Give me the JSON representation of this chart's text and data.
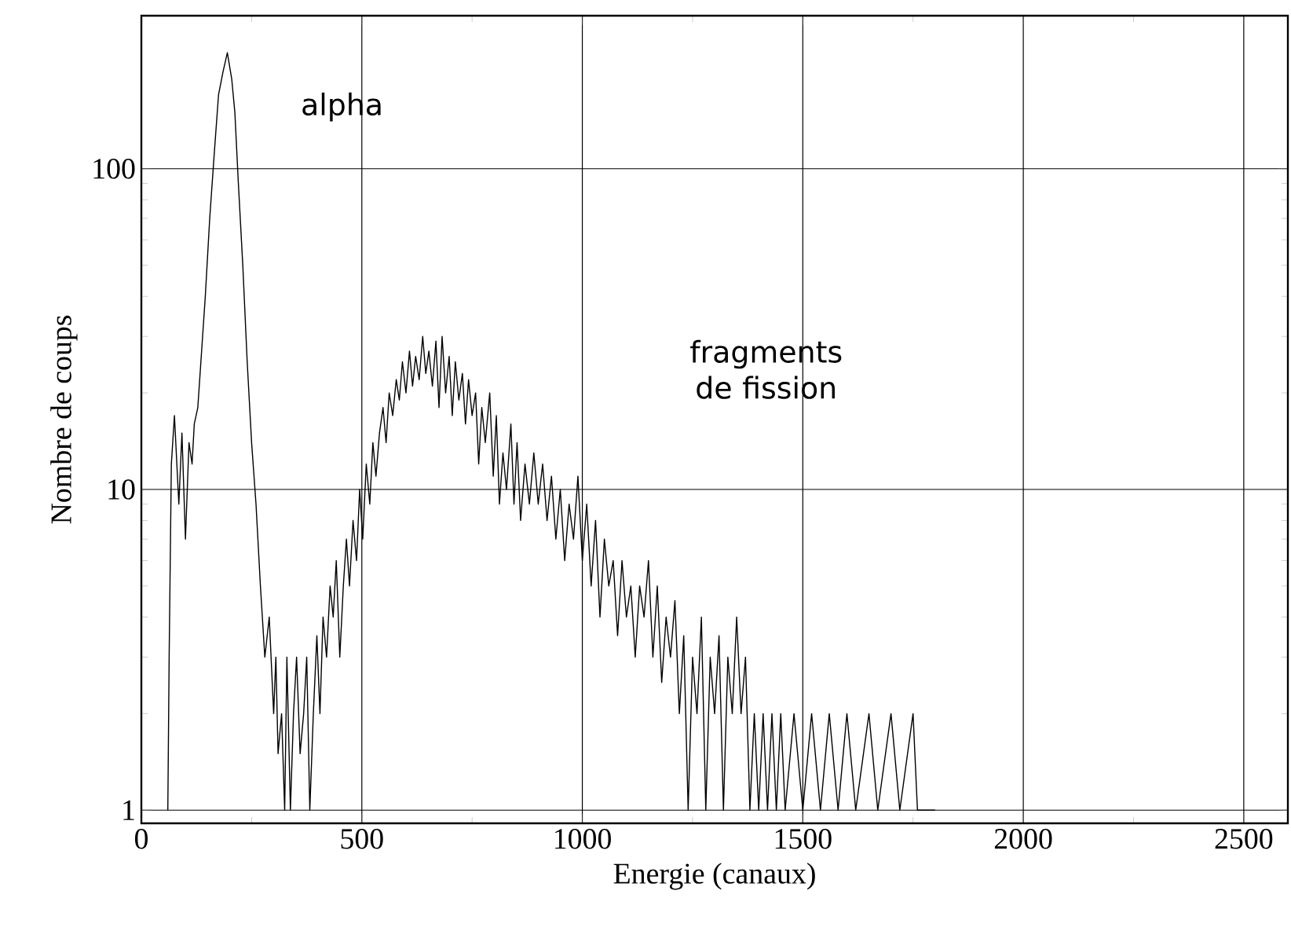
{
  "chart_data": {
    "type": "line",
    "xlabel": "Energie (canaux)",
    "ylabel": "Nombre de coups",
    "log": "y",
    "grid": true,
    "xlim": [
      0,
      2600
    ],
    "ylim": [
      0.91,
      300
    ],
    "xticks": [
      0,
      {
        "value": 250,
        "label": null
      },
      500,
      {
        "value": 750,
        "label": null
      },
      1000,
      {
        "value": 1250,
        "label": null
      },
      1500,
      {
        "value": 1750,
        "label": null
      },
      2000,
      {
        "value": 2250,
        "label": null
      },
      2500
    ],
    "yticks": [
      1,
      10,
      100
    ],
    "series": [
      {
        "color": "#000000",
        "x": [
          60,
          63,
          68,
          75,
          85,
          92,
          100,
          108,
          115,
          120,
          128,
          135,
          145,
          155,
          165,
          175,
          185,
          195,
          205,
          212,
          220,
          230,
          240,
          250,
          260,
          270,
          280,
          290,
          300,
          305,
          310,
          318,
          325,
          330,
          338,
          345,
          352,
          360,
          368,
          375,
          382,
          390,
          398,
          405,
          412,
          420,
          428,
          435,
          442,
          450,
          458,
          465,
          472,
          480,
          488,
          495,
          502,
          510,
          518,
          525,
          532,
          540,
          548,
          555,
          562,
          570,
          578,
          585,
          592,
          600,
          608,
          615,
          622,
          630,
          638,
          645,
          652,
          660,
          668,
          675,
          682,
          690,
          698,
          705,
          712,
          720,
          728,
          735,
          742,
          750,
          758,
          765,
          772,
          780,
          790,
          798,
          805,
          812,
          820,
          828,
          838,
          845,
          852,
          860,
          870,
          880,
          890,
          900,
          910,
          920,
          930,
          940,
          950,
          960,
          970,
          980,
          990,
          1000,
          1010,
          1020,
          1030,
          1040,
          1050,
          1060,
          1070,
          1080,
          1090,
          1100,
          1110,
          1120,
          1130,
          1140,
          1150,
          1160,
          1170,
          1180,
          1190,
          1200,
          1210,
          1220,
          1230,
          1240,
          1250,
          1260,
          1270,
          1280,
          1290,
          1300,
          1310,
          1320,
          1330,
          1340,
          1350,
          1360,
          1370,
          1380,
          1390,
          1400,
          1410,
          1420,
          1430,
          1440,
          1450,
          1460,
          1480,
          1500,
          1520,
          1540,
          1560,
          1580,
          1600,
          1620,
          1650,
          1670,
          1700,
          1720,
          1750,
          1760,
          1800
        ],
        "values": [
          1,
          3,
          12,
          17,
          9,
          15,
          7,
          14,
          12,
          16,
          18,
          25,
          40,
          70,
          110,
          170,
          200,
          230,
          190,
          150,
          90,
          50,
          25,
          14,
          9,
          5,
          3,
          4,
          2,
          3,
          1.5,
          2,
          1,
          3,
          1,
          2,
          3,
          1.5,
          2,
          3,
          1,
          2,
          3.5,
          2,
          4,
          3,
          5,
          4,
          6,
          3,
          5,
          7,
          5,
          8,
          6,
          10,
          7,
          12,
          9,
          14,
          11,
          15,
          18,
          14,
          20,
          17,
          22,
          19,
          25,
          20,
          27,
          21,
          26,
          22,
          30,
          23,
          27,
          21,
          29,
          18,
          30,
          20,
          26,
          17,
          25,
          19,
          23,
          16,
          22,
          17,
          20,
          12,
          18,
          14,
          20,
          11,
          17,
          9,
          13,
          10,
          16,
          9,
          14,
          8,
          12,
          9,
          13,
          9,
          12,
          8,
          11,
          7,
          10,
          6,
          9,
          7,
          11,
          6,
          9,
          5,
          8,
          4,
          7,
          5,
          6,
          3.5,
          6,
          4,
          5,
          3,
          5,
          4,
          6,
          3,
          5,
          2.5,
          4,
          3,
          4.5,
          2,
          3.5,
          1,
          3,
          2,
          4,
          1,
          3,
          2,
          3.5,
          1,
          3,
          2,
          4,
          2,
          3,
          1,
          2,
          1,
          2,
          1,
          2,
          1,
          2,
          1,
          2,
          1,
          2,
          1,
          2,
          1,
          2,
          1,
          2,
          1,
          2,
          1,
          2,
          1,
          1
        ]
      }
    ],
    "annotations": [
      "alpha",
      "fragments de fission"
    ]
  }
}
